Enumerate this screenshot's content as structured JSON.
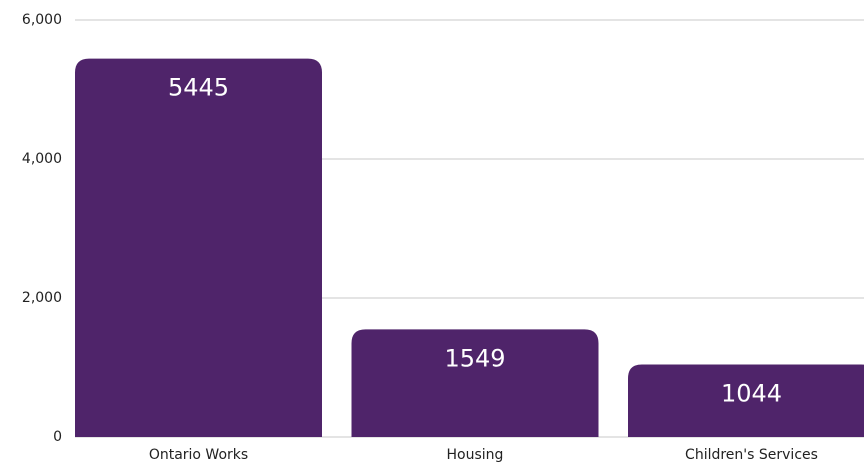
{
  "chart_data": {
    "type": "bar",
    "categories": [
      "Ontario Works",
      "Housing",
      "Children's Services"
    ],
    "values": [
      5445,
      1549,
      1044
    ],
    "color": "#4f246a",
    "ylim": [
      0,
      6000
    ],
    "yticks": [
      0,
      {
        "value": 2000,
        "label": "2,000"
      },
      {
        "value": 4000,
        "label": "4,000"
      },
      {
        "value": 6000,
        "label": "6,000"
      }
    ],
    "grid": true
  }
}
